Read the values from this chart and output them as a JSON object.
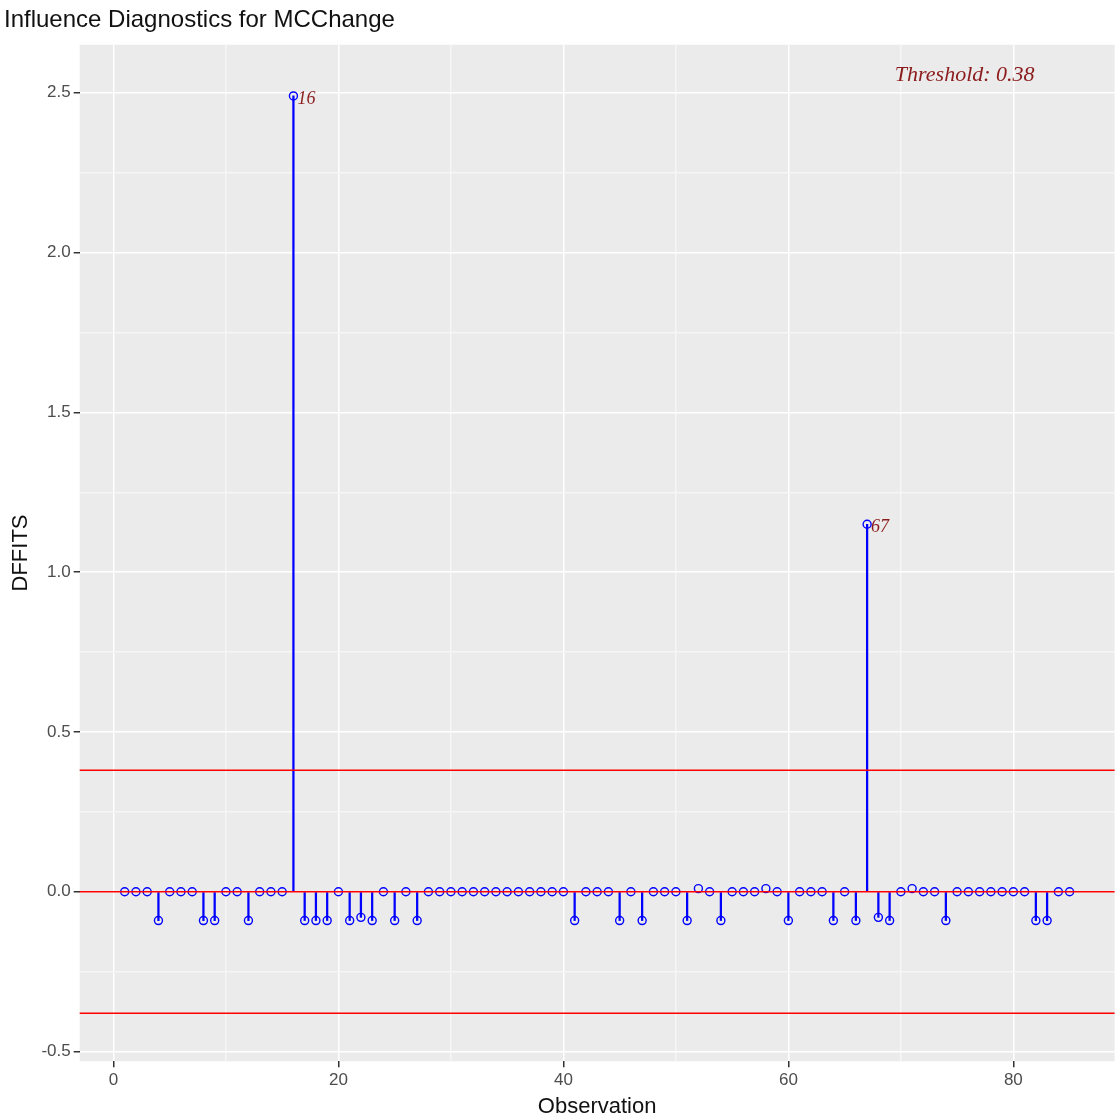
{
  "chart_data": {
    "type": "lollipop",
    "title": "Influence Diagnostics for MCChange",
    "xlabel": "Observation",
    "ylabel": "DFFITS",
    "x": [
      1,
      2,
      3,
      4,
      5,
      6,
      7,
      8,
      9,
      10,
      11,
      12,
      13,
      14,
      15,
      16,
      17,
      18,
      19,
      20,
      21,
      22,
      23,
      24,
      25,
      26,
      27,
      28,
      29,
      30,
      31,
      32,
      33,
      34,
      35,
      36,
      37,
      38,
      39,
      40,
      41,
      42,
      43,
      44,
      45,
      46,
      47,
      48,
      49,
      50,
      51,
      52,
      53,
      54,
      55,
      56,
      57,
      58,
      59,
      60,
      61,
      62,
      63,
      64,
      65,
      66,
      67,
      68,
      69,
      70,
      71,
      72,
      73,
      74,
      75,
      76,
      77,
      78,
      79,
      80,
      81,
      82,
      83,
      84,
      85
    ],
    "series": [
      {
        "color": "#0000ff",
        "values": [
          0,
          0,
          0,
          -0.09,
          0,
          0,
          0,
          -0.09,
          -0.09,
          0,
          0,
          -0.09,
          0,
          0,
          0,
          2.49,
          -0.09,
          -0.09,
          -0.09,
          0,
          -0.09,
          -0.08,
          -0.09,
          0,
          -0.09,
          0,
          -0.09,
          0,
          0,
          0,
          0,
          0,
          0,
          0,
          0,
          0,
          0,
          0,
          0,
          0,
          -0.09,
          0,
          0,
          0,
          -0.09,
          0,
          -0.09,
          0,
          0,
          0,
          -0.09,
          0.01,
          0,
          -0.09,
          0,
          0,
          0,
          0.01,
          0,
          -0.09,
          0,
          0,
          0,
          -0.09,
          0,
          -0.09,
          1.15,
          -0.08,
          -0.09,
          0,
          0.01,
          0,
          0,
          -0.09,
          0,
          0,
          0,
          0,
          0,
          0,
          0,
          -0.09,
          -0.09,
          0,
          0
        ]
      }
    ],
    "xlim": [
      -3,
      89
    ],
    "xticks": [
      0,
      {
        "value": 10,
        "label": null
      },
      20,
      {
        "value": 30,
        "label": null
      },
      40,
      {
        "value": 50,
        "label": null
      },
      60,
      {
        "value": 70,
        "label": null
      },
      80
    ],
    "ylim": [
      -0.53,
      2.65
    ],
    "yticks": [
      -0.5,
      {
        "value": -0.25,
        "label": null
      },
      {
        "value": 0,
        "label": "0.0"
      },
      {
        "value": 0.25,
        "label": null
      },
      0.5,
      {
        "value": 0.75,
        "label": null
      },
      {
        "value": 1,
        "label": "1.0"
      },
      {
        "value": 1.25,
        "label": null
      },
      1.5,
      {
        "value": 1.75,
        "label": null
      },
      {
        "value": 2,
        "label": "2.0"
      },
      {
        "value": 2.25,
        "label": null
      },
      2.5
    ],
    "ref_lines": [
      {
        "axis": "y",
        "value": 0.38,
        "color": "#ff0000"
      },
      {
        "axis": "y",
        "value": 0,
        "color": "#ff0000"
      },
      {
        "axis": "y",
        "value": -0.38,
        "color": "#ff0000"
      }
    ],
    "annotations": [
      "Threshold: 0.38",
      {
        "text": "16",
        "x": 16,
        "y": 2.49
      },
      {
        "text": "67",
        "x": 67,
        "y": 1.15
      }
    ],
    "grid": true,
    "marker": "circle",
    "legend": false
  }
}
